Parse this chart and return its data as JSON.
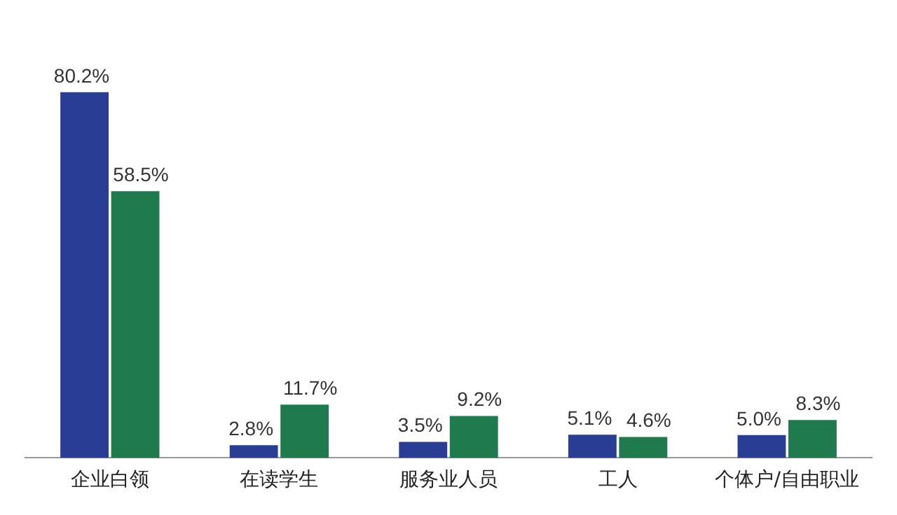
{
  "chart_data": {
    "type": "bar",
    "categories": [
      "企业白领",
      "在读学生",
      "服务业人员",
      "工人",
      "个体户/自由职业"
    ],
    "series": [
      {
        "color": "#2a3d94",
        "values": [
          80.2,
          2.8,
          3.5,
          5.1,
          5.0
        ],
        "value_labels": [
          "80.2%",
          "2.8%",
          "3.5%",
          "5.1%",
          "5.0%"
        ]
      },
      {
        "color": "#1f7a4e",
        "values": [
          58.5,
          11.7,
          9.2,
          4.6,
          8.3
        ],
        "value_labels": [
          "58.5%",
          "11.7%",
          "9.2%",
          "4.6%",
          "8.3%"
        ]
      }
    ],
    "grid": false,
    "legend": false
  }
}
